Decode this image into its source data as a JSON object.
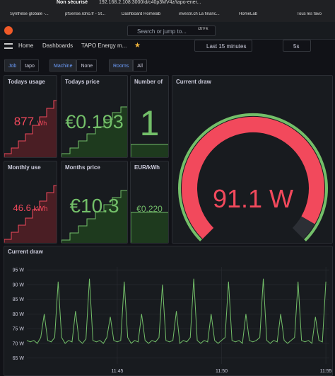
{
  "browser": {
    "security": "Non sécurisé",
    "url": "192.168.2.108:3000/d/c40p3MV4z/tapo-ener...",
    "bookmarks": [
      "Synthèse globale -...",
      "pfSense.rdno.fr - St...",
      "Dashboard Homelab",
      "investir.ch La financ...",
      "HomeLab",
      "Tous les favo"
    ]
  },
  "header": {
    "search": "Search or jump to...",
    "shortcut": "ctrl+k",
    "breadcrumbs": [
      "Home",
      "Dashboards",
      "TAPO Energy m..."
    ],
    "time_range": "Last 15 minutes",
    "refresh": "5s"
  },
  "variables": [
    {
      "label": "Job",
      "value": "tapo"
    },
    {
      "label": "Machine",
      "value": "None"
    },
    {
      "label": "Rooms",
      "value": "All"
    }
  ],
  "panels": [
    {
      "title": "Todays usage",
      "value": "877",
      "unit": "Wh"
    },
    {
      "title": "Todays price",
      "value": "€0.193"
    },
    {
      "title": "Number of",
      "value": "1"
    },
    {
      "title": "Monthly use",
      "value": "46.6",
      "unit": "kWh"
    },
    {
      "title": "Months price",
      "value": "€10.3"
    },
    {
      "title": "EUR/kWh",
      "value": "€0.220"
    },
    {
      "title": "Current draw",
      "value": "91.1 W"
    }
  ],
  "chart_data": {
    "type": "line",
    "title": "Current draw",
    "color": "#73bf69",
    "values": [
      71,
      70.5,
      71,
      70,
      72,
      80,
      71,
      70.5,
      72,
      91,
      72,
      70,
      71,
      70.5,
      81,
      71,
      70,
      71.5,
      92,
      71,
      70.5,
      71,
      70,
      72,
      79,
      71,
      70.5,
      71,
      91,
      72,
      70,
      71,
      70.5,
      80,
      71,
      70,
      71,
      70.5,
      72,
      90,
      71,
      70.5,
      71,
      81,
      70,
      71,
      70.5,
      72,
      92,
      71,
      70,
      71,
      70.5,
      80,
      71,
      70,
      71,
      72,
      91,
      71,
      70.5,
      71,
      70,
      80,
      71,
      70.5,
      71,
      72,
      92,
      71,
      70,
      71,
      70.5,
      80,
      71,
      70,
      71,
      72,
      91,
      71,
      70.5,
      71,
      70,
      79,
      71,
      70.5,
      91
    ],
    "xlim": [
      0,
      87
    ],
    "xticks": [
      {
        "value": 26,
        "label": "11:45"
      },
      {
        "value": 56,
        "label": "11:50"
      },
      {
        "value": 86,
        "label": "11:55"
      }
    ],
    "ylim": [
      63,
      96
    ],
    "yticks": [
      {
        "value": 65,
        "label": "65 W"
      },
      {
        "value": 70,
        "label": "70 W"
      },
      {
        "value": 75,
        "label": "75 W"
      },
      {
        "value": 80,
        "label": "80 W"
      },
      {
        "value": 85,
        "label": "85 W"
      },
      {
        "value": 90,
        "label": "90 W"
      },
      {
        "value": 95,
        "label": "95 W"
      }
    ],
    "grid": true
  }
}
